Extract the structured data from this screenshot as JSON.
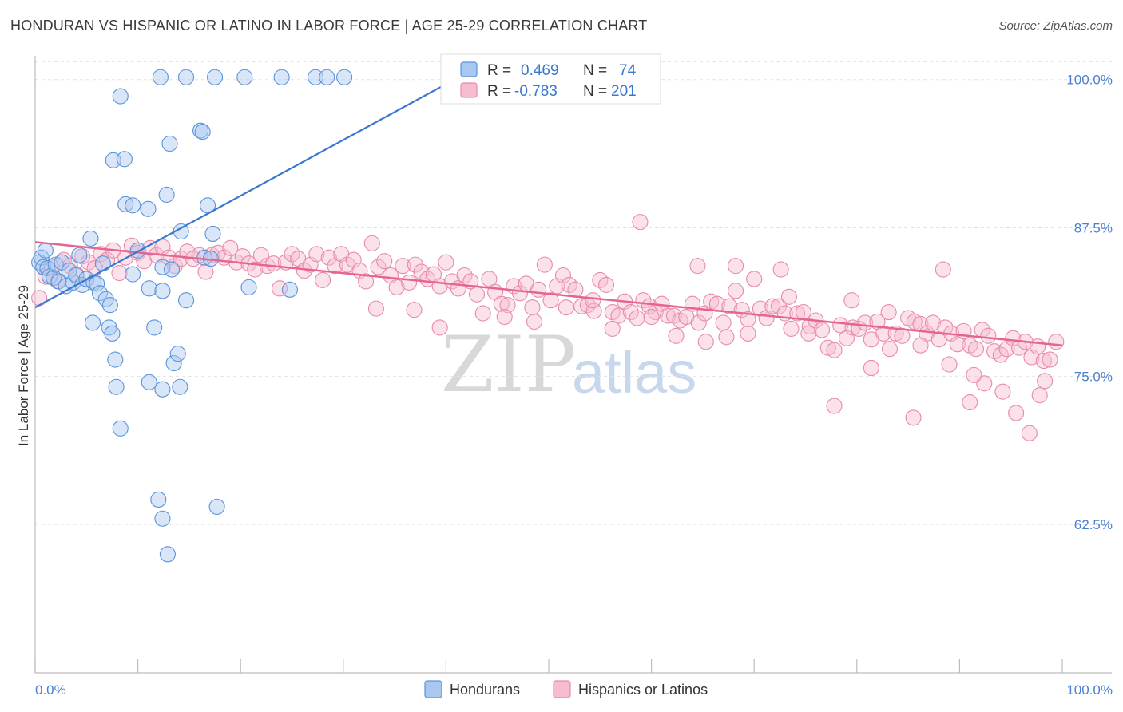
{
  "header": {
    "title": "HONDURAN VS HISPANIC OR LATINO IN LABOR FORCE | AGE 25-29 CORRELATION CHART",
    "source": "Source: ZipAtlas.com"
  },
  "watermark": {
    "zip": "ZIP",
    "atlas": "atlas"
  },
  "colors": {
    "blue_fill": "#a9c8f0",
    "blue_stroke": "#5b93db",
    "blue_line": "#3a78cf",
    "pink_fill": "#f6bdd0",
    "pink_stroke": "#e98aab",
    "pink_line": "#e56591",
    "tick_text": "#4a7fd1"
  },
  "legend_top": {
    "rows": [
      {
        "r_label": "R =",
        "r_value": "0.469",
        "n_label": "N =",
        "n_value": "74"
      },
      {
        "r_label": "R =",
        "r_value": "-0.783",
        "n_label": "N =",
        "n_value": "201"
      }
    ]
  },
  "legend_bottom": {
    "items": [
      {
        "label": "Hondurans"
      },
      {
        "label": "Hispanics or Latinos"
      }
    ]
  },
  "chart_data": {
    "type": "scatter",
    "title": "HONDURAN VS HISPANIC OR LATINO IN LABOR FORCE | AGE 25-29 CORRELATION CHART",
    "xlabel": "",
    "ylabel": "In Labor Force | Age 25-29",
    "xlim": [
      0,
      100
    ],
    "ylim": [
      50,
      102
    ],
    "x_tick_labels": [
      "0.0%",
      "100.0%"
    ],
    "y_ticks": [
      62.5,
      75.0,
      87.5,
      100.0
    ],
    "y_tick_labels": [
      "62.5%",
      "75.0%",
      "87.5%",
      "100.0%"
    ],
    "grid": true,
    "legend_placement": "top-center",
    "series": [
      {
        "name": "Hondurans",
        "color": "#a9c8f0",
        "R": 0.469,
        "N": 74,
        "trend": {
          "x": [
            0,
            44
          ],
          "y": [
            80.8,
            101.5
          ]
        },
        "points": [
          [
            0.4,
            84.6
          ],
          [
            0.6,
            85.0
          ],
          [
            0.8,
            84.2
          ],
          [
            1.0,
            85.6
          ],
          [
            1.2,
            84.1
          ],
          [
            1.4,
            83.4
          ],
          [
            1.8,
            83.3
          ],
          [
            2.0,
            84.4
          ],
          [
            2.3,
            83.0
          ],
          [
            2.6,
            84.6
          ],
          [
            3.0,
            82.6
          ],
          [
            3.3,
            83.9
          ],
          [
            3.7,
            82.9
          ],
          [
            4.0,
            83.5
          ],
          [
            4.3,
            85.2
          ],
          [
            4.6,
            82.7
          ],
          [
            5.0,
            83.2
          ],
          [
            5.4,
            86.6
          ],
          [
            5.7,
            82.9
          ],
          [
            6.0,
            82.8
          ],
          [
            6.3,
            82.0
          ],
          [
            6.6,
            84.5
          ],
          [
            6.9,
            81.5
          ],
          [
            7.3,
            81.0
          ],
          [
            5.6,
            79.5
          ],
          [
            7.2,
            79.1
          ],
          [
            7.5,
            78.6
          ],
          [
            7.8,
            76.4
          ],
          [
            7.9,
            74.1
          ],
          [
            8.3,
            70.6
          ],
          [
            8.3,
            98.6
          ],
          [
            7.6,
            93.2
          ],
          [
            8.8,
            89.5
          ],
          [
            9.5,
            89.4
          ],
          [
            11.0,
            89.1
          ],
          [
            8.7,
            93.3
          ],
          [
            9.5,
            83.6
          ],
          [
            10.0,
            85.6
          ],
          [
            11.1,
            82.4
          ],
          [
            11.6,
            79.1
          ],
          [
            11.1,
            74.5
          ],
          [
            12.4,
            84.2
          ],
          [
            12.4,
            82.2
          ],
          [
            12.4,
            73.9
          ],
          [
            12.8,
            90.3
          ],
          [
            13.1,
            94.6
          ],
          [
            13.3,
            84.0
          ],
          [
            13.5,
            76.1
          ],
          [
            13.9,
            76.9
          ],
          [
            14.1,
            74.1
          ],
          [
            14.2,
            87.2
          ],
          [
            14.7,
            81.4
          ],
          [
            16.1,
            95.7
          ],
          [
            16.3,
            95.6
          ],
          [
            16.5,
            85.0
          ],
          [
            16.8,
            89.4
          ],
          [
            17.1,
            84.9
          ],
          [
            17.3,
            87.0
          ],
          [
            17.7,
            64.0
          ],
          [
            20.8,
            82.5
          ],
          [
            24.8,
            82.3
          ],
          [
            12.0,
            64.6
          ],
          [
            12.4,
            63.0
          ],
          [
            12.9,
            60.0
          ],
          [
            12.2,
            100.2
          ],
          [
            14.7,
            100.2
          ],
          [
            17.5,
            100.2
          ],
          [
            20.4,
            100.2
          ],
          [
            24.0,
            100.2
          ],
          [
            27.3,
            100.2
          ],
          [
            28.4,
            100.2
          ],
          [
            30.1,
            100.2
          ],
          [
            40.4,
            100.2
          ],
          [
            49.0,
            100.2
          ]
        ]
      },
      {
        "name": "Hispanics or Latinos",
        "color": "#f6bdd0",
        "R": -0.783,
        "N": 201,
        "trend": {
          "x": [
            0,
            100
          ],
          "y": [
            86.3,
            77.6
          ]
        },
        "points": [
          [
            0.4,
            81.6
          ],
          [
            1.0,
            83.4
          ],
          [
            1.6,
            84.2
          ],
          [
            2.2,
            83.0
          ],
          [
            2.8,
            84.8
          ],
          [
            3.4,
            84.3
          ],
          [
            4.0,
            83.6
          ],
          [
            4.6,
            85.1
          ],
          [
            5.2,
            84.6
          ],
          [
            5.8,
            84.1
          ],
          [
            6.4,
            85.3
          ],
          [
            7.0,
            84.8
          ],
          [
            7.6,
            85.6
          ],
          [
            8.2,
            83.7
          ],
          [
            8.8,
            85.0
          ],
          [
            9.4,
            86.0
          ],
          [
            10.0,
            85.4
          ],
          [
            10.6,
            84.7
          ],
          [
            11.2,
            85.8
          ],
          [
            11.8,
            85.2
          ],
          [
            12.4,
            85.9
          ],
          [
            13.0,
            85.0
          ],
          [
            13.6,
            84.3
          ],
          [
            14.2,
            84.9
          ],
          [
            14.8,
            85.5
          ],
          [
            15.4,
            84.9
          ],
          [
            16.0,
            85.2
          ],
          [
            16.6,
            83.8
          ],
          [
            17.2,
            85.2
          ],
          [
            17.8,
            85.4
          ],
          [
            18.4,
            85.0
          ],
          [
            19.0,
            85.8
          ],
          [
            19.6,
            84.6
          ],
          [
            20.2,
            85.1
          ],
          [
            20.8,
            84.5
          ],
          [
            21.4,
            84.0
          ],
          [
            22.0,
            85.2
          ],
          [
            22.6,
            84.3
          ],
          [
            23.2,
            84.5
          ],
          [
            23.8,
            82.4
          ],
          [
            24.4,
            84.6
          ],
          [
            25.0,
            85.3
          ],
          [
            25.6,
            84.9
          ],
          [
            26.2,
            83.9
          ],
          [
            26.8,
            84.4
          ],
          [
            27.4,
            85.3
          ],
          [
            28.0,
            83.1
          ],
          [
            28.6,
            85.0
          ],
          [
            29.2,
            84.3
          ],
          [
            29.8,
            85.3
          ],
          [
            30.4,
            84.4
          ],
          [
            31.0,
            84.8
          ],
          [
            31.6,
            83.9
          ],
          [
            32.2,
            83.0
          ],
          [
            32.8,
            86.2
          ],
          [
            33.4,
            84.2
          ],
          [
            34.0,
            84.7
          ],
          [
            34.6,
            83.5
          ],
          [
            35.2,
            82.5
          ],
          [
            35.8,
            84.3
          ],
          [
            36.4,
            82.9
          ],
          [
            37.0,
            84.4
          ],
          [
            37.6,
            83.8
          ],
          [
            38.2,
            83.2
          ],
          [
            38.8,
            83.6
          ],
          [
            39.4,
            82.6
          ],
          [
            40.0,
            84.6
          ],
          [
            40.6,
            83.0
          ],
          [
            41.2,
            82.4
          ],
          [
            41.8,
            83.5
          ],
          [
            42.4,
            83.0
          ],
          [
            43.0,
            81.9
          ],
          [
            43.6,
            80.3
          ],
          [
            44.2,
            83.2
          ],
          [
            44.8,
            82.1
          ],
          [
            45.4,
            81.1
          ],
          [
            46.0,
            81.0
          ],
          [
            46.6,
            82.6
          ],
          [
            47.2,
            82.0
          ],
          [
            47.8,
            82.8
          ],
          [
            48.4,
            80.8
          ],
          [
            49.0,
            82.3
          ],
          [
            49.6,
            84.4
          ],
          [
            50.2,
            81.4
          ],
          [
            50.8,
            82.6
          ],
          [
            51.4,
            83.5
          ],
          [
            52.0,
            82.7
          ],
          [
            52.6,
            82.3
          ],
          [
            53.2,
            80.9
          ],
          [
            53.8,
            81.0
          ],
          [
            54.4,
            80.5
          ],
          [
            55.0,
            83.1
          ],
          [
            55.6,
            82.7
          ],
          [
            56.2,
            80.4
          ],
          [
            56.8,
            80.1
          ],
          [
            57.4,
            81.3
          ],
          [
            58.0,
            80.4
          ],
          [
            58.6,
            79.9
          ],
          [
            59.2,
            81.4
          ],
          [
            59.8,
            80.9
          ],
          [
            60.4,
            80.4
          ],
          [
            61.0,
            81.1
          ],
          [
            61.6,
            80.1
          ],
          [
            62.2,
            80.1
          ],
          [
            62.8,
            79.7
          ],
          [
            63.4,
            80.0
          ],
          [
            64.0,
            81.1
          ],
          [
            64.6,
            79.5
          ],
          [
            65.2,
            80.3
          ],
          [
            65.8,
            81.3
          ],
          [
            66.4,
            81.1
          ],
          [
            67.0,
            79.5
          ],
          [
            67.6,
            80.9
          ],
          [
            68.2,
            82.2
          ],
          [
            68.8,
            80.6
          ],
          [
            69.4,
            79.8
          ],
          [
            70.0,
            83.2
          ],
          [
            70.6,
            80.7
          ],
          [
            71.2,
            79.9
          ],
          [
            71.8,
            80.9
          ],
          [
            72.4,
            80.9
          ],
          [
            73.0,
            80.3
          ],
          [
            73.6,
            79.0
          ],
          [
            74.2,
            80.3
          ],
          [
            74.8,
            80.4
          ],
          [
            75.4,
            79.2
          ],
          [
            76.0,
            79.7
          ],
          [
            76.6,
            78.9
          ],
          [
            77.2,
            77.4
          ],
          [
            77.8,
            77.2
          ],
          [
            78.4,
            79.3
          ],
          [
            79.0,
            78.2
          ],
          [
            79.6,
            79.1
          ],
          [
            80.2,
            79.0
          ],
          [
            80.8,
            79.5
          ],
          [
            81.4,
            78.1
          ],
          [
            82.0,
            79.6
          ],
          [
            82.6,
            78.6
          ],
          [
            83.2,
            77.3
          ],
          [
            83.8,
            78.6
          ],
          [
            84.4,
            78.4
          ],
          [
            85.0,
            79.9
          ],
          [
            85.6,
            79.6
          ],
          [
            86.2,
            79.4
          ],
          [
            86.8,
            78.6
          ],
          [
            87.4,
            79.5
          ],
          [
            88.0,
            78.1
          ],
          [
            88.6,
            79.1
          ],
          [
            89.2,
            78.6
          ],
          [
            89.8,
            77.7
          ],
          [
            90.4,
            78.8
          ],
          [
            91.0,
            77.6
          ],
          [
            91.6,
            77.3
          ],
          [
            92.2,
            78.9
          ],
          [
            92.8,
            78.4
          ],
          [
            93.4,
            77.1
          ],
          [
            94.0,
            76.8
          ],
          [
            94.6,
            77.3
          ],
          [
            95.2,
            78.2
          ],
          [
            95.8,
            77.4
          ],
          [
            96.4,
            77.9
          ],
          [
            97.0,
            76.6
          ],
          [
            97.6,
            77.5
          ],
          [
            98.2,
            76.3
          ],
          [
            98.8,
            76.4
          ],
          [
            99.4,
            77.9
          ],
          [
            58.9,
            88.0
          ],
          [
            64.5,
            84.3
          ],
          [
            72.6,
            84.0
          ],
          [
            88.4,
            84.0
          ],
          [
            68.2,
            84.3
          ],
          [
            60.0,
            80.0
          ],
          [
            54.3,
            81.4
          ],
          [
            75.3,
            78.6
          ],
          [
            81.4,
            75.7
          ],
          [
            91.0,
            72.8
          ],
          [
            92.4,
            74.4
          ],
          [
            94.2,
            73.7
          ],
          [
            95.5,
            71.9
          ],
          [
            96.8,
            70.2
          ],
          [
            97.8,
            73.4
          ],
          [
            98.3,
            74.6
          ],
          [
            77.8,
            72.5
          ],
          [
            85.5,
            71.5
          ],
          [
            89.0,
            76.0
          ],
          [
            91.4,
            75.1
          ],
          [
            62.4,
            78.4
          ],
          [
            65.3,
            77.9
          ],
          [
            69.4,
            78.6
          ],
          [
            73.4,
            81.7
          ],
          [
            79.5,
            81.4
          ],
          [
            83.1,
            80.4
          ],
          [
            86.2,
            77.6
          ],
          [
            48.6,
            79.6
          ],
          [
            51.7,
            80.8
          ],
          [
            56.2,
            79.0
          ],
          [
            67.3,
            78.3
          ],
          [
            39.4,
            79.1
          ],
          [
            45.7,
            80.0
          ],
          [
            33.2,
            80.7
          ],
          [
            36.9,
            80.6
          ]
        ]
      }
    ]
  }
}
